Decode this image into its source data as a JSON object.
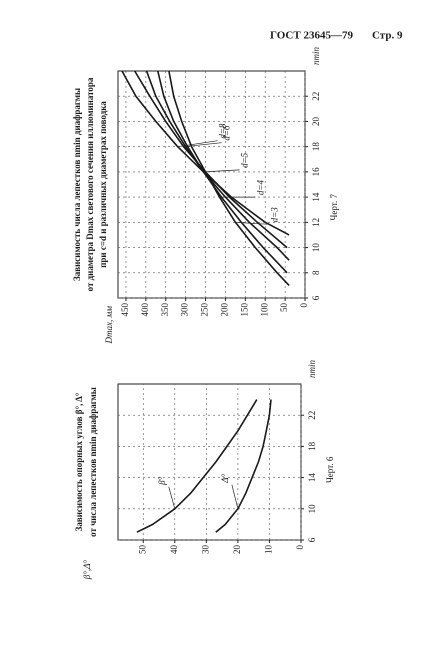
{
  "header": {
    "code": "ГОСТ 23645—79",
    "page": "Стр. 9"
  },
  "chart_data": [
    {
      "type": "line",
      "title": [
        "Зависимость числа лепестков nmin диафрагмы",
        "от диаметра Dmax светового сечения иллюминатора",
        "при c=d и различных диаметрах поводка"
      ],
      "caption": "Черт. 7",
      "x_label": "nmin",
      "y_label": "Dmax, мм",
      "xlim": [
        6,
        24
      ],
      "xticks": [
        6,
        8,
        10,
        12,
        14,
        16,
        18,
        20,
        22
      ],
      "ylim": [
        0,
        470
      ],
      "yticks": [
        0,
        50,
        100,
        150,
        200,
        250,
        300,
        350,
        400,
        450
      ],
      "grid": true,
      "color": "#1a1a1a",
      "series": [
        {
          "name": "d=8",
          "x": [
            11,
            12,
            14,
            16,
            18,
            20,
            22,
            24
          ],
          "values": [
            40,
            100,
            185,
            255,
            320,
            375,
            425,
            460
          ]
        },
        {
          "name": "d=6",
          "x": [
            10,
            12,
            14,
            16,
            18,
            20,
            22,
            24
          ],
          "values": [
            45,
            120,
            190,
            250,
            305,
            350,
            390,
            428
          ]
        },
        {
          "name": "d=5",
          "x": [
            9,
            10,
            12,
            14,
            16,
            18,
            20,
            22,
            24
          ],
          "values": [
            40,
            70,
            140,
            200,
            255,
            300,
            340,
            375,
            398
          ]
        },
        {
          "name": "d=4",
          "x": [
            8,
            10,
            12,
            14,
            16,
            18,
            20,
            22,
            24
          ],
          "values": [
            45,
            105,
            160,
            210,
            255,
            295,
            330,
            355,
            370
          ]
        },
        {
          "name": "d=3",
          "x": [
            7,
            8,
            10,
            12,
            14,
            16,
            18,
            20,
            22,
            24
          ],
          "values": [
            40,
            70,
            125,
            175,
            215,
            250,
            285,
            310,
            330,
            342
          ]
        }
      ]
    },
    {
      "type": "line",
      "title": [
        "Зависимость опорных углов β°, Δ°",
        "от числа лепестков nmin диафрагмы"
      ],
      "caption": "Черт. 6",
      "x_label": "nmin",
      "y_label": "β°,Δ°",
      "xlim": [
        6,
        26
      ],
      "xticks": [
        6,
        10,
        14,
        18,
        22
      ],
      "ylim": [
        0,
        58
      ],
      "yticks": [
        0,
        10,
        20,
        30,
        40,
        50
      ],
      "grid": true,
      "color": "#1a1a1a",
      "series": [
        {
          "name": "β°",
          "x": [
            7,
            8,
            10,
            12,
            14,
            16,
            18,
            20,
            22,
            24
          ],
          "values": [
            52,
            47,
            40,
            35,
            31,
            27,
            23.5,
            20,
            17,
            14
          ]
        },
        {
          "name": "Δ°",
          "x": [
            7,
            8,
            10,
            12,
            14,
            16,
            18,
            20,
            22,
            24
          ],
          "values": [
            27,
            24,
            20,
            17.5,
            15.5,
            13.5,
            12,
            11,
            10,
            9.5
          ]
        }
      ]
    }
  ]
}
